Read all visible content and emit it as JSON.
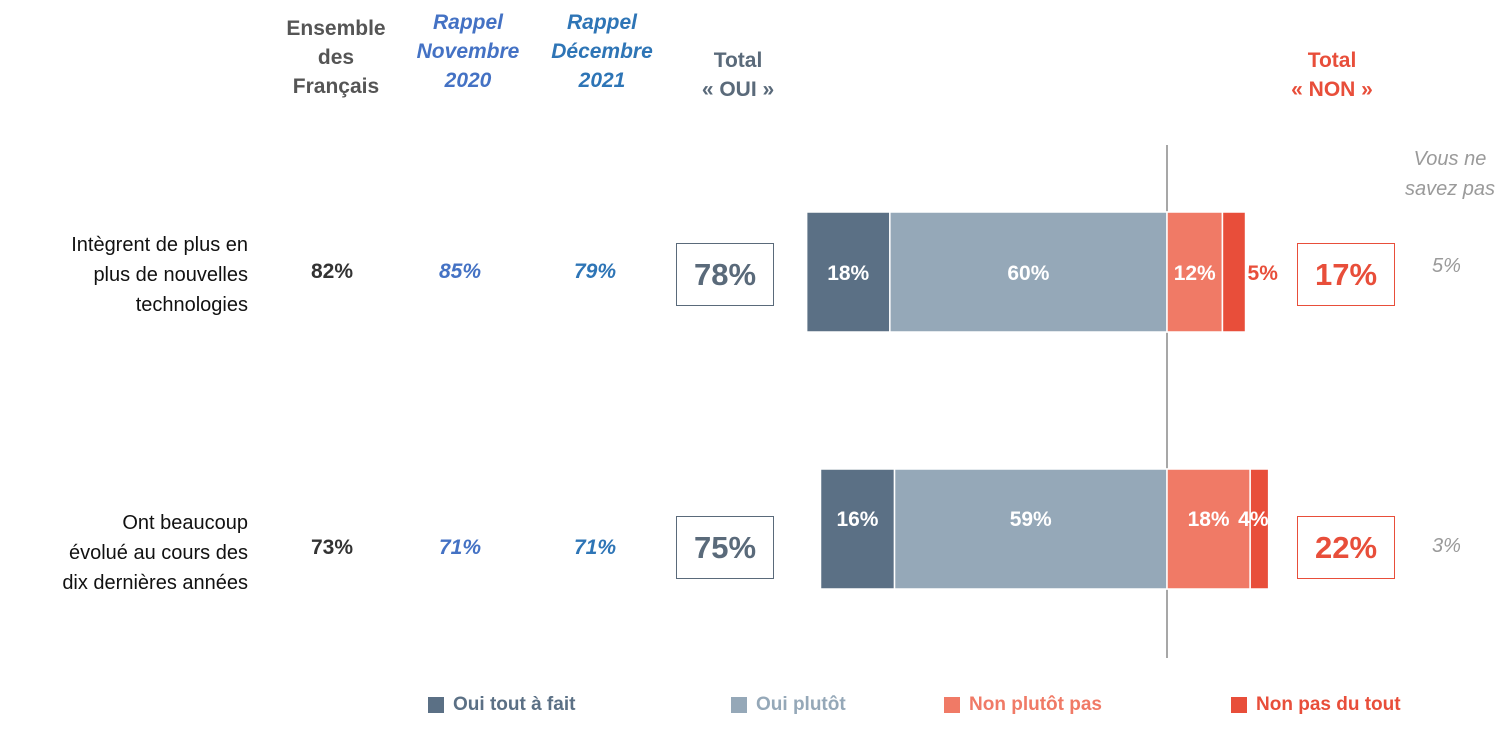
{
  "headers": {
    "ensemble": [
      "Ensemble",
      "des",
      "Français"
    ],
    "nov": [
      "Rappel",
      "Novembre",
      "2020"
    ],
    "dec": [
      "Rappel",
      "Décembre",
      "2021"
    ],
    "total_oui": [
      "Total",
      "« OUI »"
    ],
    "total_non": [
      "Total",
      "« NON »"
    ],
    "dont_know": [
      "Vous ne",
      "savez pas"
    ]
  },
  "rows": [
    {
      "label": [
        "Intègrent de plus en",
        "plus de nouvelles",
        "technologies"
      ],
      "ensemble": "82%",
      "nov2020": "85%",
      "dec2021": "79%",
      "total_oui": "78%",
      "total_non": "17%",
      "dont_know": "5%"
    },
    {
      "label": [
        "Ont beaucoup",
        "évolué au cours des",
        "dix dernières années"
      ],
      "ensemble": "73%",
      "nov2020": "71%",
      "dec2021": "71%",
      "total_oui": "75%",
      "total_non": "22%",
      "dont_know": "3%"
    }
  ],
  "legend": [
    "Oui tout à fait",
    "Oui plutôt",
    "Non plutôt pas",
    "Non pas du tout"
  ],
  "colors": {
    "oui_tout_a_fait": "#5B7085",
    "oui_plutot": "#95A8B8",
    "non_plutot_pas": "#F07A66",
    "non_pas_du_tout": "#E84E3A"
  },
  "chart_data": {
    "type": "bar",
    "orientation": "horizontal-diverging",
    "categories": [
      "Intègrent de plus en plus de nouvelles technologies",
      "Ont beaucoup évolué au cours des dix dernières années"
    ],
    "series": [
      {
        "name": "Oui tout à fait",
        "values": [
          18,
          16
        ],
        "side": "left",
        "color": "#5B7085"
      },
      {
        "name": "Oui plutôt",
        "values": [
          60,
          59
        ],
        "side": "left",
        "color": "#95A8B8"
      },
      {
        "name": "Non plutôt pas",
        "values": [
          12,
          18
        ],
        "side": "right",
        "color": "#F07A66"
      },
      {
        "name": "Non pas du tout",
        "values": [
          5,
          4
        ],
        "side": "right",
        "color": "#E84E3A"
      }
    ],
    "labels": [
      [
        "18%",
        "60%",
        "12%",
        "5%"
      ],
      [
        "16%",
        "59%",
        "18%",
        "4%"
      ]
    ],
    "legend_position": "bottom"
  }
}
